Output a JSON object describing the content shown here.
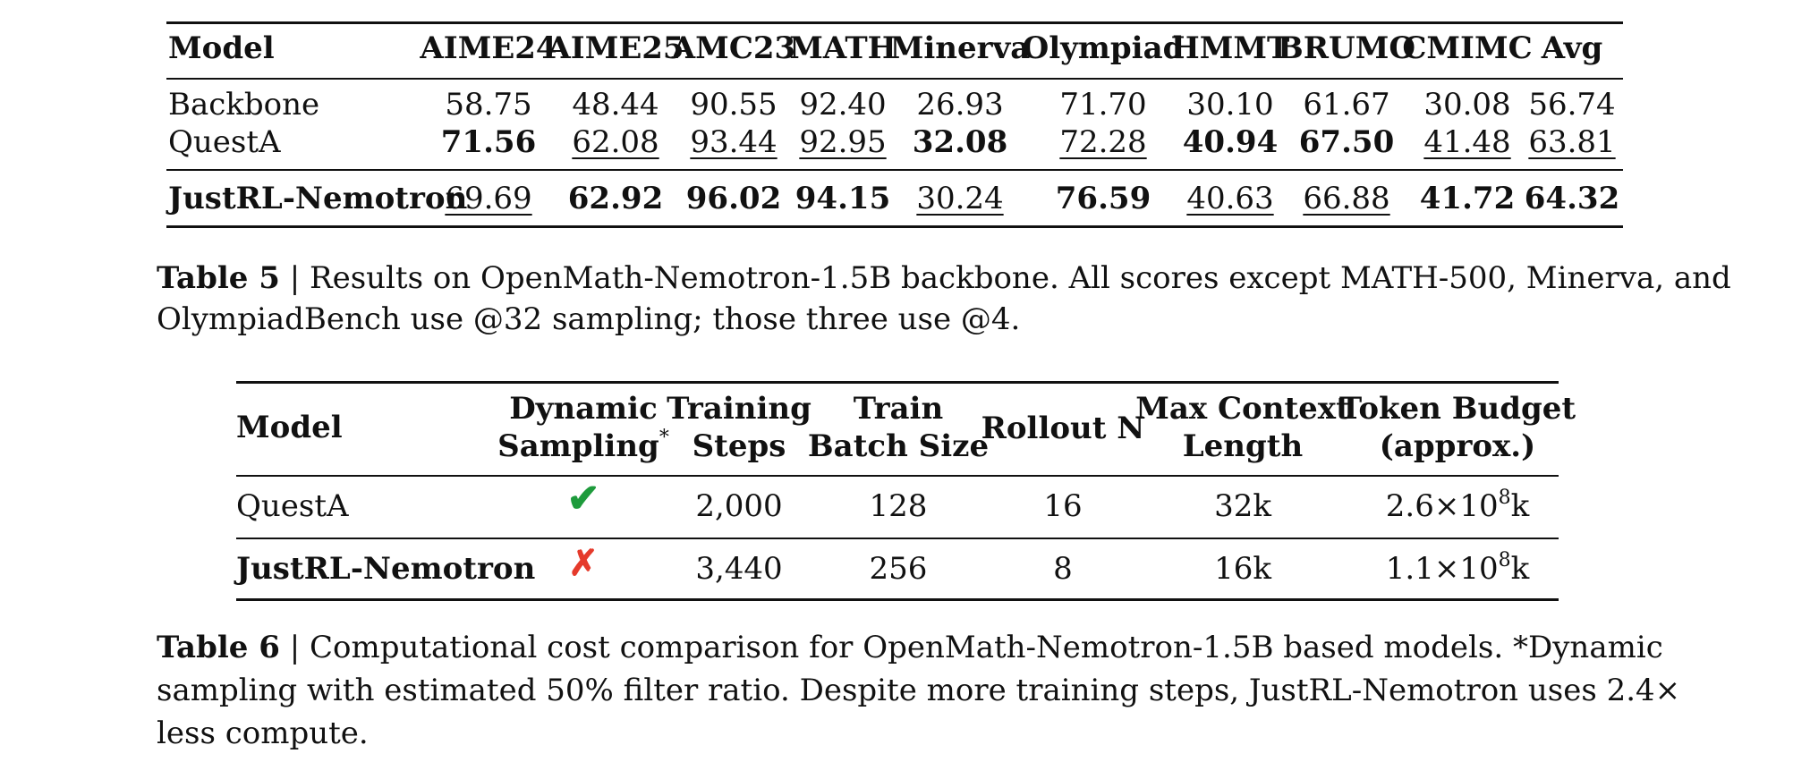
{
  "table5": {
    "headers": [
      "Model",
      "AIME24",
      "AIME25",
      "AMC23",
      "MATH",
      "Minerva",
      "Olympiad",
      "HMMT",
      "BRUMO",
      "CMIMC",
      "Avg"
    ],
    "rows": [
      {
        "model": "Backbone",
        "values": [
          "58.75",
          "48.44",
          "90.55",
          "92.40",
          "26.93",
          "71.70",
          "30.10",
          "61.67",
          "30.08",
          "56.74"
        ],
        "bold": [
          false,
          false,
          false,
          false,
          false,
          false,
          false,
          false,
          false,
          false
        ],
        "underline": [
          false,
          false,
          false,
          false,
          false,
          false,
          false,
          false,
          false,
          false
        ]
      },
      {
        "model": "QuestA",
        "values": [
          "71.56",
          "62.08",
          "93.44",
          "92.95",
          "32.08",
          "72.28",
          "40.94",
          "67.50",
          "41.48",
          "63.81"
        ],
        "bold": [
          true,
          false,
          false,
          false,
          true,
          false,
          true,
          true,
          false,
          false
        ],
        "underline": [
          false,
          true,
          true,
          true,
          false,
          true,
          false,
          false,
          true,
          true
        ]
      },
      {
        "model": "JustRL-Nemotron",
        "values": [
          "69.69",
          "62.92",
          "96.02",
          "94.15",
          "30.24",
          "76.59",
          "40.63",
          "66.88",
          "41.72",
          "64.32"
        ],
        "bold": [
          false,
          true,
          true,
          true,
          false,
          true,
          false,
          false,
          true,
          true
        ],
        "underline": [
          true,
          false,
          false,
          false,
          true,
          false,
          true,
          true,
          false,
          false
        ]
      }
    ],
    "caption_label": "Table 5",
    "caption_line1": " | Results on OpenMath-Nemotron-1.5B backbone. All scores except MATH-500, Minerva, and",
    "caption_line2": "OlympiadBench use @32 sampling; those three use @4."
  },
  "table6": {
    "headers": {
      "model": "Model",
      "dynamic_l1": "Dynamic",
      "dynamic_l2": "Sampling",
      "dynamic_mark": "*",
      "steps_l1": "Training",
      "steps_l2": "Steps",
      "batch_l1": "Train",
      "batch_l2": "Batch Size",
      "rollout": "Rollout N",
      "ctx_l1": "Max Context",
      "ctx_l2": "Length",
      "budget_l1": "Token Budget",
      "budget_l2": "(approx.)"
    },
    "rows": [
      {
        "model": "QuestA",
        "dynamic": "✔",
        "steps": "2,000",
        "batch": "128",
        "rollout": "16",
        "ctx": "32k",
        "budget_base": "2.6×10",
        "budget_exp": "8",
        "budget_unit": "k"
      },
      {
        "model": "JustRL-Nemotron",
        "dynamic": "✗",
        "steps": "3,440",
        "batch": "256",
        "rollout": "8",
        "ctx": "16k",
        "budget_base": "1.1×10",
        "budget_exp": "8",
        "budget_unit": "k"
      }
    ],
    "caption_label": "Table 6",
    "caption_line1": " | Computational cost comparison for OpenMath-Nemotron-1.5B based models. *Dynamic",
    "caption_line2": "sampling with estimated 50% filter ratio. Despite more training steps, JustRL-Nemotron uses 2.4×",
    "caption_line3": "less compute."
  },
  "colors": {
    "check": "#1e9b3c",
    "cross": "#e53a2b",
    "text": "#111111"
  }
}
